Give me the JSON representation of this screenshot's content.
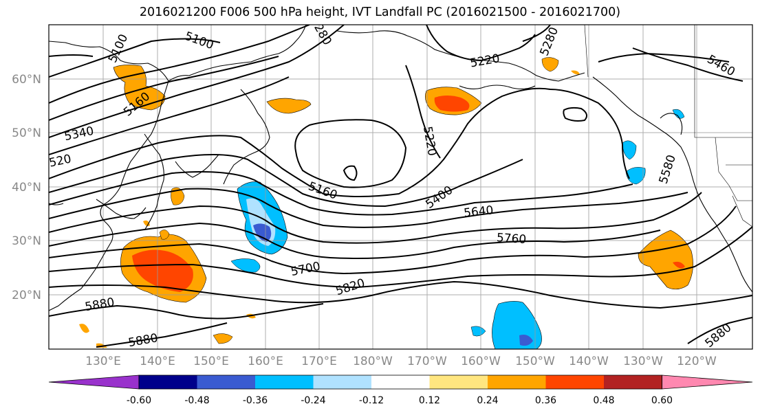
{
  "title": "2016021200 F006 500 hPa height, IVT Landfall PC (2016021500 - 2016021700)",
  "lat_labels": [
    "60°N",
    "50°N",
    "40°N",
    "30°N",
    "20°N"
  ],
  "lon_labels": [
    "130°E",
    "140°E",
    "150°E",
    "160°E",
    "170°E",
    "180°W",
    "170°W",
    "160°W",
    "150°W",
    "140°W",
    "130°W",
    "120°W"
  ],
  "contour_labels": {
    "c5100a": "5100",
    "c5100b": "5100",
    "c5160a": "5160",
    "c5340": "5340",
    "c520": "520",
    "c280": "280",
    "c5220a": "5220",
    "c5280": "5280",
    "c5460": "5460",
    "c5220b": "5220",
    "c5160b": "5160",
    "c5400": "5400",
    "c5580": "5580",
    "c5640": "5640",
    "c5760": "5760",
    "c5700": "5700",
    "c5820": "5820",
    "c5880a": "5880",
    "c5880b": "5880",
    "c5880c": "5880"
  },
  "colorbar": {
    "ticks": [
      "-0.60",
      "-0.48",
      "-0.36",
      "-0.24",
      "-0.12",
      "0.12",
      "0.24",
      "0.36",
      "0.48",
      "0.60"
    ],
    "colors": [
      "#9932cc",
      "#00008b",
      "#3a5bd1",
      "#00bfff",
      "#b0e2ff",
      "#ffffff",
      "#ffe680",
      "#ffa500",
      "#ff4500",
      "#b22222",
      "#ff88b0"
    ]
  }
}
